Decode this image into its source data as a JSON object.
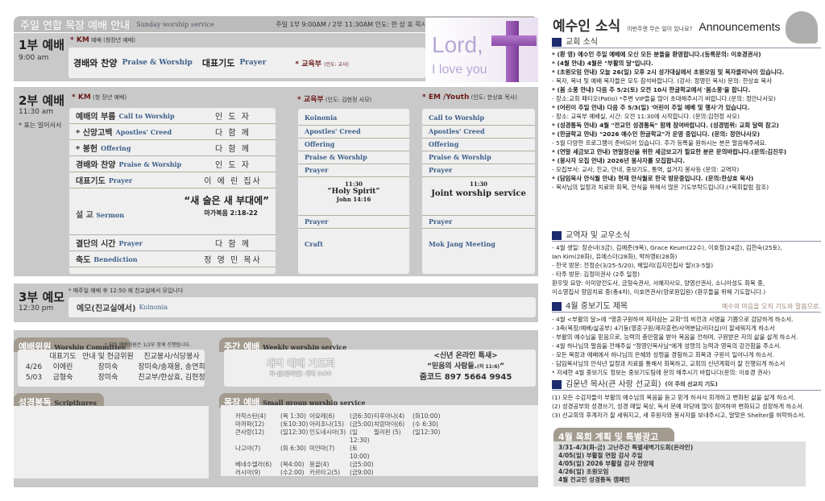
{
  "header": {
    "title": "주일 연합 목장 예배 안내",
    "subtitle": "Sunday worship service",
    "info": "주일 1부 9:00AM / 2부 11:30AM   인도: 한 상 호 목사"
  },
  "hero": {
    "line1": "Lord,",
    "line2": "I love you",
    "icon": "cross-icon"
  },
  "service1": {
    "title": "1부 예배",
    "time": "9:00 am",
    "note_label": "KM",
    "note": "예배 (청장년 예배)",
    "item1": "경배와 찬양",
    "item1_en": "Praise & Worship",
    "item2": "대표기도",
    "item2_en": "Prayer",
    "edu_label": "교육부",
    "edu_note": "(인도: 교사)"
  },
  "service2": {
    "title": "2부 예배",
    "time": "11:30 am",
    "stand_note": "* 표는 일어서서",
    "km_label": "KM",
    "km_note": "(청 장년 예배)",
    "rows": [
      {
        "ko": "예배의 부름",
        "en": "Call to Worship",
        "who": "인 도 자"
      },
      {
        "ko": "* 신앙고백",
        "en": "Apostles' Creed",
        "who": "다 함 께"
      },
      {
        "ko": "* 봉헌",
        "en": "Offering",
        "who": "다 함 께"
      },
      {
        "ko": "경배와 찬양",
        "en": "Praise & Worship",
        "who": "인 도 자"
      },
      {
        "ko": "대표기도",
        "en": "Prayer",
        "who": "이 에 린 집사"
      }
    ],
    "sermon": {
      "ko": "설 교",
      "en": "Sermon",
      "title": "“새 술은 새 부대에”",
      "verse": "마가복음 2:18-22"
    },
    "rows2": [
      {
        "ko": "결단의 시간",
        "en": "Prayer",
        "who": "다 함 께"
      },
      {
        "ko": "축도",
        "en": "Benediction",
        "who": "정 영 민 목사"
      }
    ],
    "edu": {
      "label": "교육부",
      "note": "(인도: 김현정 사모)",
      "items": [
        "Koinonia",
        "Apostles' Creed",
        "Offering",
        "Praise & Worship",
        "Prayer"
      ],
      "time": "11:30",
      "title": "“Holy Spirit”",
      "verse": "John 14:16",
      "after": [
        "Prayer",
        "Craft"
      ]
    },
    "em": {
      "label": "EM /Youth",
      "note": "(인도: 한상효 목사)",
      "items": [
        "Call to Worship",
        "Apostles' Creed",
        "Offering",
        "Praise & Worship",
        "Prayer"
      ],
      "time": "11:30",
      "title": "Joint worship service",
      "after": [
        "Prayer",
        "Mok Jang Meeting"
      ]
    }
  },
  "service3": {
    "title": "3부 예모",
    "time": "12:30 pm",
    "note": "* 매주일 예배 후 12:50 에 친교실에서 모입니다",
    "item": "예모(친교실에서)",
    "item_en": "Koinonia"
  },
  "committee": {
    "title": "예배위원",
    "title_en": "Worship Committee",
    "note": "* 모든 예배위원은 1/2부 함께 진행됩니다.",
    "headers": [
      "",
      "대표기도",
      "안내 및 헌금위원",
      "친교봉사/식당봉사"
    ],
    "rows": [
      [
        "4/26",
        "이에린",
        "장미숙",
        "장미숙/송재용, 송연희"
      ],
      [
        "5/03",
        "금형숙",
        "장미숙",
        "친교부/한상효, 김현정"
      ]
    ]
  },
  "weekly": {
    "title": "주간 예배",
    "title_en": "Weekly worship service",
    "dawn": "새벽 예배 기도회",
    "dawn_time": "화-금(온라인) 새벽 5:30",
    "special": "<신년 온라인 특새>",
    "special_title": "“믿음의 사람들.",
    "special_ref": "(히 11:6)",
    "zoom": "줌코드 897 5664 9945"
  },
  "scripture": {
    "title": "성경봉독",
    "title_en": "Scripthures"
  },
  "smallgroup": {
    "title": "목장 예배",
    "title_en": "Small group worship service",
    "groups": [
      [
        "카작스탄(4)",
        "(목 1:30)",
        "아요레(6)",
        "(금6:30)",
        "티후아나(4)",
        "(화10:00)"
      ],
      [
        "마까파(12)",
        "(토10:30)",
        "아리조나(15)",
        "(금5:00)",
        "치앙마이(6)",
        "(수 6:30)"
      ],
      [
        "큰사랑(12)",
        "(일12:30)",
        "인도네시아(3)",
        "(일12:30)",
        "필리핀 (5)",
        "(일12:30)"
      ],
      [
        "나고야(7)",
        "(화 6:30)",
        "미얀마(7)",
        "(토10:00)",
        "",
        ""
      ],
      [
        "베네수엘라(6)",
        "(목4:00)",
        "몽골(4)",
        "(금5:00)",
        "",
        ""
      ],
      [
        "러시아(9)",
        "(수2:00)",
        "카르타고(5)",
        "(금9:00)",
        "",
        ""
      ]
    ]
  },
  "announce": {
    "title": "예수인 소식",
    "subtitle": "이번주엔 무슨 일이 있나요?",
    "title_en": "Announcements",
    "church_title": "교회 소식",
    "church": [
      "* (환 영) 예수인 주일 예배에 오신 모든 분들을 환영합니다.(등록문의: 이호경권사)",
      "* (4월 안내) 4월은 \"부활의 달\"입니다.",
      "* (초원모임 안내) 오늘 26(일) 오후 2시 성가대실에서 초원모임 및 목자클리닉이 있습니다.",
      "- 목자, 목녀 및 예배 목자들은 모두 참석바랍니다. (강사: 정영민 목사) 문의: 한상효 목사",
      "* (봄 소풍 안내) 다음 주 5/2(토) 오전 10시 한글학교에서 '봄소풍'을 합니다.",
      "- 장소:교회 패티오(Patio) *주변 VIP들을 많이 초대해주시기 바랍니다.(문의: 정안나사모)",
      "* (어린이 주일 안내) 다음 주 5/3(일) '어린이 주일 예배 및 행사'가 있습니다.",
      "- 장소: 교육부 예배실, 시간: 오전 11:30에 시작합니다. (문의:김현정 사모)",
      "* (성경통독 안내) 4월 \"전교인 성경통독\" 함께 참여바랍니다. (성경범위: 교회 달력 참고)",
      "* (한글학교 안내) \"2026 예수인 한글학교\"가 운영 중입니다. (문의: 정안나사모)",
      "- 5월 다양한 프로그램이 준비되어 있습니다. 추가 등록을 원하시는 분은 말씀해주세요.",
      "* (연말 세금보고 안내) 연말정산을 위한 세금보고가 필요한 분은 문의바랍니다.(문의:김진우)",
      "* (봉사자 모집 안내) 2026년 봉사자를 모집합니다.",
      "- 모집부서: 교사, 친교, 안내, 중보기도, 통역, 설거지 봉사등 (문의: 교역자)",
      "* (담임목사 안식월 안내) 현재 안식월로 한국 방문중입니다. (문의:한상효 목사)",
      "- 목사님의 일정과 치료와 회복, 안식을 위해서 많은 기도부탁드립니다.(*목회칼럼 참조)"
    ],
    "staff_title": "교역자 및 교우소식",
    "staff": [
      "- 4월 생일: 장순녀(3금), 김예준(9목), Grace Keum(22수), 이호정(24금), 김한숙(25토),",
      "        Ian Kim(28화), 유에스더(28화), 박하영E(28화)",
      "- 한국 방문: 전정순(3/25-5/20), 헤일리(김지민집사 딸)(3-5월)",
      "- 타주 방문: 김정미권사 (2주 일정)",
      "환우및 요양: 이미양전도사, 금형숙권사, 서혜자사모, 양영선권사, 소니아성도 회복 중,",
      "  이소영집사 항암치료 중(총4차), 이호면권사(양로원입원) (환우들을 위해 기도합니다.)"
    ],
    "prayer_title": "4월 중보기도 제목",
    "prayer_motto": "예수의 마음을 오직 기도와 말씀으로.",
    "prayer": [
      "- 4월 <부활의 달>에 \"영혼구원하여 제자삼는 교회\"의 비전과 사명을 기쁨으로 감당하게 하소서.",
      "- 3축(목장/예배/삶공부) 4기둥(영혼구원/제자훈련/사역분담/리더십)이 잘세워지게 하소서",
      "- 부활의 예수님을 믿음으로, 능력의 충만함을 받아 복음을 전하며, 구원받은 자의 삶을 살게 하소서.",
      "- 4월 하나님의 말씀을 전해주실 \"정영민목사님\"에게 성령의 능력과 영육의 강건함을 주소서.",
      "- 모든 목장과 예배에서 하나님의 은혜와 성령을 경험하고 회복과 구원이 일어나게 하소서.",
      "- 담임목사님의 안식년 일정과 치료를 통해서 회복하고, 교회의 신년계획이 잘 진행되게 하소서",
      "* 자세한 4월 중보기도 정보는 중보기도팀에 문의 해주시기 바랍니다(문의: 이호경 권사)"
    ],
    "mission_title": "김운년 목사(큰 사랑 선교회)",
    "mission_note": "(이 주의 선교지 기도)",
    "mission": [
      "(1) 모든 수감자들이 부활의 예수님의 복음을 듣고 믿게 하셔서 회개하고 변화된 삶을 살게 하소서.",
      "(2) 성경공부와 성경쓰기, 성경 매일 묵상, 독서 문예 마당에 많이 참여하여 변화되고 성장하게 하소서.",
      "(3) 선교회의 후계자가 잘 세워지고, 새 후원자와 봉사자를 보내주시고, 알맞은 Shelter를 허락하소서."
    ],
    "plan_title": "4월 목회 계획 및 특별광고",
    "plan": [
      "3/31-4/3(화-금) 고난주간 특별새벽기도회(온라인)",
      "4/05(일) 부활절 연합 감사 주일",
      "4/05(일) 2026 부활절 감사 찬양제",
      "4/26(일) 초원모임",
      "4월 전교인 성경통독 캠페인"
    ]
  },
  "colors": {
    "panel": "#c9c9c9",
    "box": "#efefef",
    "tab": "#a39a90",
    "accent_blue": "#3d5f8a",
    "heading_square": "#1c2a6e",
    "cross": "#9b59b6"
  }
}
